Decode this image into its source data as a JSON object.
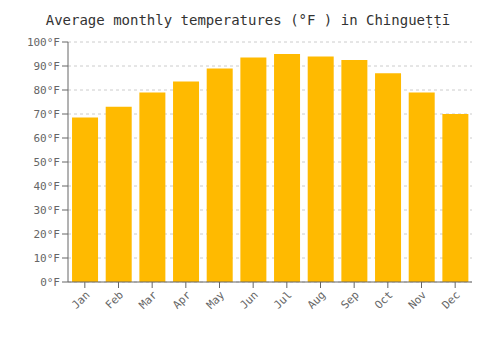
{
  "chart_data": {
    "type": "bar",
    "title": "Average monthly temperatures (°F ) in Chingueṭṭī",
    "categories": [
      "Jan",
      "Feb",
      "Mar",
      "Apr",
      "May",
      "Jun",
      "Jul",
      "Aug",
      "Sep",
      "Oct",
      "Nov",
      "Dec"
    ],
    "values": [
      68.5,
      73,
      79,
      83.5,
      89,
      93.5,
      95,
      94,
      92.5,
      87,
      79,
      70
    ],
    "color": "#FFBA00",
    "ylim": [
      0,
      100
    ],
    "yticks": [
      {
        "value": 0,
        "label": "0°F"
      },
      {
        "value": 10,
        "label": "10°F"
      },
      {
        "value": 20,
        "label": "20°F"
      },
      {
        "value": 30,
        "label": "30°F"
      },
      {
        "value": 40,
        "label": "40°F"
      },
      {
        "value": 50,
        "label": "50°F"
      },
      {
        "value": 60,
        "label": "60°F"
      },
      {
        "value": 70,
        "label": "70°F"
      },
      {
        "value": 80,
        "label": "80°F"
      },
      {
        "value": 90,
        "label": "90°F"
      },
      {
        "value": 100,
        "label": "100°F"
      }
    ],
    "grid": true
  }
}
